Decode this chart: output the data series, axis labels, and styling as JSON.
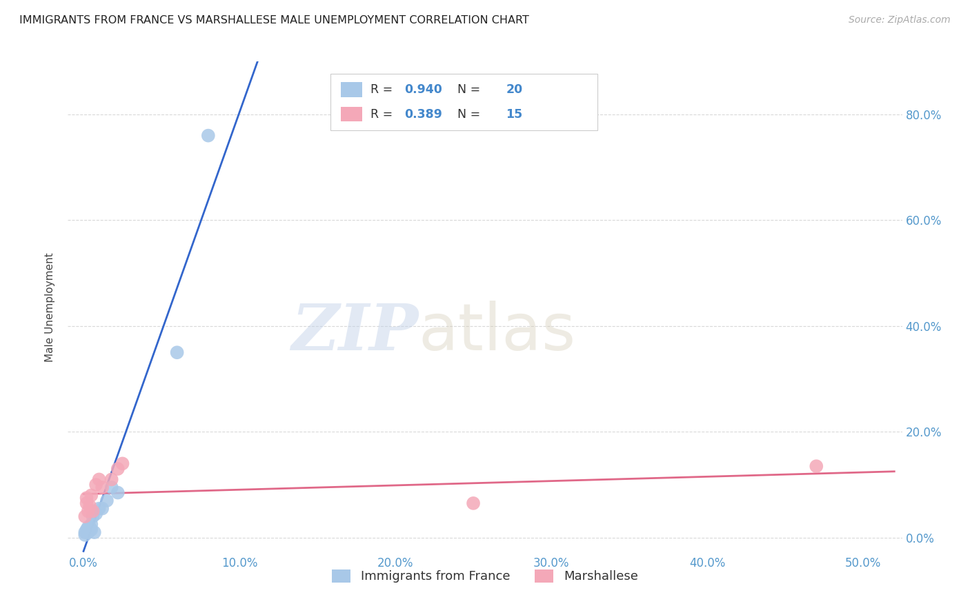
{
  "title": "IMMIGRANTS FROM FRANCE VS MARSHALLESE MALE UNEMPLOYMENT CORRELATION CHART",
  "source": "Source: ZipAtlas.com",
  "ylabel": "Male Unemployment",
  "xlabel_ticks": [
    "0.0%",
    "10.0%",
    "20.0%",
    "30.0%",
    "40.0%",
    "50.0%"
  ],
  "xlabel_vals": [
    0.0,
    0.1,
    0.2,
    0.3,
    0.4,
    0.5
  ],
  "ylabel_ticks": [
    "0.0%",
    "20.0%",
    "40.0%",
    "60.0%",
    "80.0%"
  ],
  "ylabel_vals": [
    0.0,
    0.2,
    0.4,
    0.6,
    0.8
  ],
  "xlim": [
    -0.01,
    0.525
  ],
  "ylim": [
    -0.03,
    0.9
  ],
  "r_france": 0.94,
  "n_france": 20,
  "r_marshallese": 0.389,
  "n_marshallese": 15,
  "france_color": "#a8c8e8",
  "france_line_color": "#3366cc",
  "marshallese_color": "#f4a8b8",
  "marshallese_line_color": "#e06888",
  "france_x": [
    0.001,
    0.001,
    0.002,
    0.002,
    0.003,
    0.003,
    0.004,
    0.004,
    0.005,
    0.005,
    0.006,
    0.007,
    0.008,
    0.01,
    0.012,
    0.015,
    0.018,
    0.022,
    0.06,
    0.08
  ],
  "france_y": [
    0.005,
    0.01,
    0.01,
    0.015,
    0.01,
    0.02,
    0.015,
    0.02,
    0.015,
    0.025,
    0.04,
    0.01,
    0.045,
    0.055,
    0.055,
    0.07,
    0.095,
    0.085,
    0.35,
    0.76
  ],
  "marshallese_x": [
    0.001,
    0.002,
    0.002,
    0.003,
    0.004,
    0.005,
    0.006,
    0.008,
    0.01,
    0.012,
    0.018,
    0.022,
    0.025,
    0.25,
    0.47
  ],
  "marshallese_y": [
    0.04,
    0.065,
    0.075,
    0.05,
    0.06,
    0.08,
    0.05,
    0.1,
    0.11,
    0.095,
    0.11,
    0.13,
    0.14,
    0.065,
    0.135
  ],
  "watermark_zip": "ZIP",
  "watermark_atlas": "atlas",
  "legend_france": "Immigrants from France",
  "legend_marshallese": "Marshallese",
  "background_color": "#ffffff",
  "grid_color": "#d0d0d0",
  "tick_color": "#5599cc",
  "title_color": "#222222",
  "source_color": "#aaaaaa",
  "legend_text_color": "#333333",
  "legend_value_color": "#4488cc"
}
